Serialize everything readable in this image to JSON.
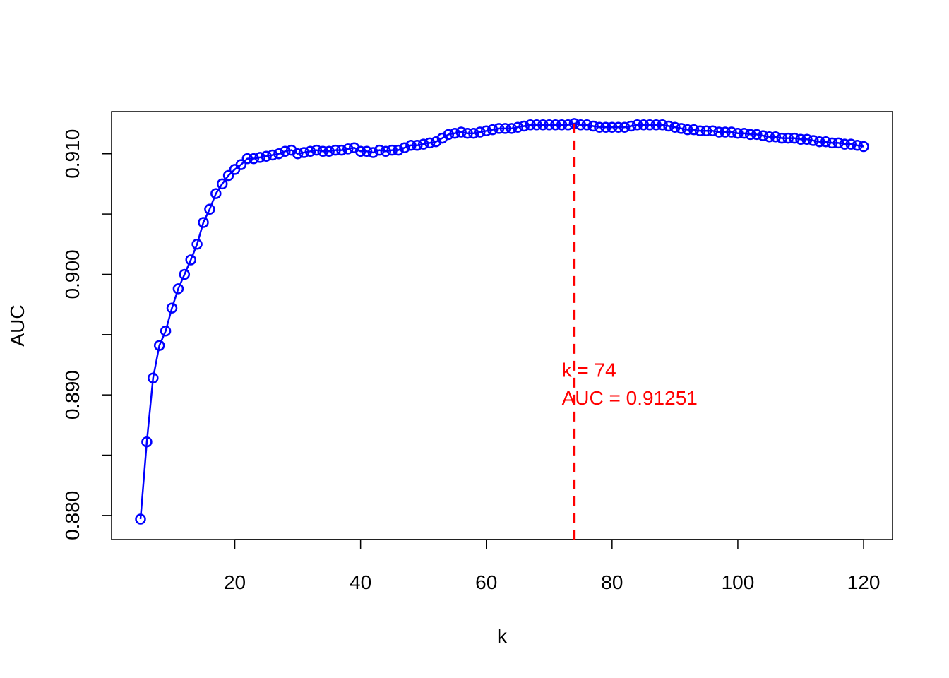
{
  "chart_data": {
    "type": "line",
    "title": "",
    "xlabel": "k",
    "ylabel": "AUC",
    "xlim": [
      5,
      120
    ],
    "ylim": [
      0.878,
      0.9135
    ],
    "x_ticks": [
      20,
      40,
      60,
      80,
      100,
      120
    ],
    "y_ticks": [
      0.88,
      0.885,
      0.89,
      0.895,
      0.9,
      0.905,
      0.91
    ],
    "y_tick_labels": [
      "0.880",
      "",
      "0.890",
      "",
      "0.900",
      "",
      "0.910"
    ],
    "grid": false,
    "legend": "none",
    "series": [
      {
        "color": "#0000ff",
        "marker": "open-circle",
        "x": [
          5,
          6,
          7,
          8,
          9,
          10,
          11,
          12,
          13,
          14,
          15,
          16,
          17,
          18,
          19,
          20,
          21,
          22,
          23,
          24,
          25,
          26,
          27,
          28,
          29,
          30,
          31,
          32,
          33,
          34,
          35,
          36,
          37,
          38,
          39,
          40,
          41,
          42,
          43,
          44,
          45,
          46,
          47,
          48,
          49,
          50,
          51,
          52,
          53,
          54,
          55,
          56,
          57,
          58,
          59,
          60,
          61,
          62,
          63,
          64,
          65,
          66,
          67,
          68,
          69,
          70,
          71,
          72,
          73,
          74,
          75,
          76,
          77,
          78,
          79,
          80,
          81,
          82,
          83,
          84,
          85,
          86,
          87,
          88,
          89,
          90,
          91,
          92,
          93,
          94,
          95,
          96,
          97,
          98,
          99,
          100,
          101,
          102,
          103,
          104,
          105,
          106,
          107,
          108,
          109,
          110,
          111,
          112,
          113,
          114,
          115,
          116,
          117,
          118,
          119,
          120
        ],
        "y": [
          0.8797,
          0.8861,
          0.8914,
          0.8941,
          0.8953,
          0.8972,
          0.8988,
          0.9,
          0.9012,
          0.9025,
          0.9043,
          0.9054,
          0.9067,
          0.9075,
          0.9082,
          0.9087,
          0.9091,
          0.9096,
          0.9096,
          0.9097,
          0.9098,
          0.9099,
          0.91,
          0.9102,
          0.9103,
          0.91,
          0.9101,
          0.9102,
          0.9103,
          0.9102,
          0.9102,
          0.9103,
          0.9103,
          0.9104,
          0.9105,
          0.9102,
          0.9102,
          0.9101,
          0.9103,
          0.9102,
          0.9103,
          0.9103,
          0.9105,
          0.9107,
          0.9107,
          0.9108,
          0.9109,
          0.911,
          0.9113,
          0.9116,
          0.9117,
          0.9118,
          0.9117,
          0.9117,
          0.9118,
          0.9119,
          0.912,
          0.9121,
          0.9121,
          0.9121,
          0.9122,
          0.9123,
          0.9124,
          0.9124,
          0.9124,
          0.9124,
          0.9124,
          0.9124,
          0.9124,
          0.91251,
          0.9124,
          0.9124,
          0.9123,
          0.9122,
          0.9122,
          0.9122,
          0.9122,
          0.9122,
          0.9123,
          0.9124,
          0.9124,
          0.9124,
          0.9124,
          0.9124,
          0.9123,
          0.9122,
          0.9121,
          0.912,
          0.912,
          0.9119,
          0.9119,
          0.9119,
          0.9118,
          0.9118,
          0.9118,
          0.9117,
          0.9117,
          0.9116,
          0.9116,
          0.9115,
          0.9114,
          0.9114,
          0.9113,
          0.9113,
          0.9113,
          0.9112,
          0.9112,
          0.9111,
          0.911,
          0.911,
          0.9109,
          0.9109,
          0.9108,
          0.9108,
          0.9107,
          0.9106
        ]
      }
    ],
    "vline": {
      "x": 74,
      "color": "#ff0000",
      "style": "dashed"
    },
    "annotations": [
      {
        "text": "k = 74",
        "x": 72,
        "y": 0.8915,
        "color": "#ff0000"
      },
      {
        "text": "AUC = 0.91251",
        "x": 72,
        "y": 0.8892,
        "color": "#ff0000"
      }
    ]
  }
}
